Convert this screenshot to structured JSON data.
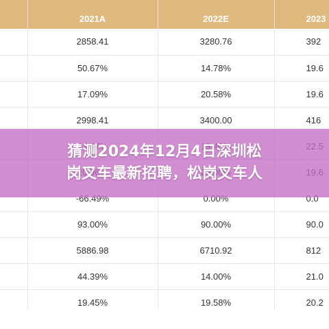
{
  "table": {
    "headers": [
      "",
      "2021A",
      "2022E",
      "2023"
    ],
    "rows": [
      [
        "",
        "2858.41",
        "3280.76",
        "392"
      ],
      [
        "",
        "50.67%",
        "14.78%",
        "19.6"
      ],
      [
        "",
        "17.09%",
        "20.58%",
        "19.6"
      ],
      [
        "",
        "2998.41",
        "3400.00",
        "416"
      ],
      [
        "",
        "43.47%",
        "13.40%",
        "22.5"
      ],
      [
        "",
        "20.96%",
        "20.00%",
        "19.6"
      ],
      [
        "",
        "-66.49%",
        "0.00%",
        "0.0"
      ],
      [
        "",
        "93.00%",
        "90.00%",
        "90.0"
      ],
      [
        "",
        "5886.98",
        "6710.92",
        "812"
      ],
      [
        "",
        "44.39%",
        "14.00%",
        "21.0"
      ],
      [
        "",
        "19.45%",
        "19.58%",
        "20.2"
      ]
    ]
  },
  "banner": {
    "line1": "猜测2024年12月4日深圳松",
    "line2": "岗叉车最新招聘，松岗叉车人"
  },
  "colors": {
    "header_bg": "#e0b97e",
    "banner_bg": "#c46ec4"
  }
}
